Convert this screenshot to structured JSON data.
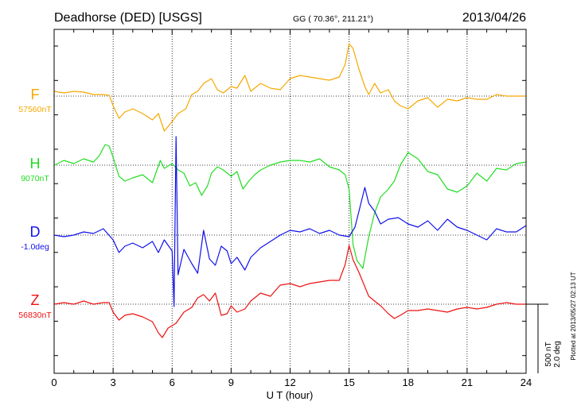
{
  "header": {
    "title": "Deadhorse (DED)  [USGS]",
    "coords": "GG ( 70.36°, 211.21°)",
    "date": "2013/04/26"
  },
  "side_note": "Plotted at 2013/05/27 02:13 UT",
  "scale_bar": {
    "label1": "500 nT",
    "label2": "2.0 deg"
  },
  "chart_data": {
    "type": "line",
    "xlabel": "U T (hour)",
    "xlim": [
      0,
      24
    ],
    "x_ticks": [
      "0",
      "3",
      "6",
      "9",
      "12",
      "15",
      "18",
      "21",
      "24"
    ],
    "grid": true,
    "series": [
      {
        "name": "F",
        "baseline": "57560nT",
        "color": "#f5a800",
        "x": [
          0,
          0.5,
          1,
          1.5,
          2,
          2.5,
          2.8,
          3,
          3.3,
          3.6,
          4,
          4.5,
          5,
          5.3,
          5.6,
          6,
          6.3,
          6.7,
          7,
          7.3,
          7.6,
          8,
          8.3,
          8.6,
          9,
          9.3,
          9.7,
          10,
          10.5,
          11,
          11.5,
          12,
          12.5,
          13,
          13.5,
          14,
          14.5,
          14.8,
          15,
          15.2,
          15.5,
          15.8,
          16,
          16.3,
          16.6,
          17,
          17.3,
          17.6,
          18,
          18.5,
          19,
          19.5,
          20,
          20.5,
          21,
          21.5,
          22,
          22.5,
          23,
          23.5,
          24
        ],
        "values": [
          6,
          4,
          6,
          5,
          2,
          2,
          1,
          -12,
          -28,
          -20,
          -16,
          -22,
          -30,
          -22,
          -44,
          -32,
          -22,
          -16,
          2,
          6,
          16,
          22,
          8,
          4,
          12,
          10,
          26,
          6,
          16,
          10,
          8,
          22,
          26,
          24,
          22,
          20,
          24,
          40,
          66,
          60,
          34,
          12,
          2,
          16,
          4,
          8,
          -6,
          -12,
          -16,
          -6,
          -2,
          -14,
          -4,
          -6,
          -2,
          -4,
          -4,
          2,
          0,
          0,
          0
        ]
      },
      {
        "name": "H",
        "baseline": "9070nT",
        "color": "#22dd22",
        "x": [
          0,
          0.5,
          1,
          1.5,
          2,
          2.3,
          2.6,
          2.8,
          3,
          3.3,
          3.6,
          4,
          4.5,
          5,
          5.2,
          5.4,
          5.6,
          6,
          6.3,
          6.6,
          6.9,
          7.2,
          7.5,
          7.8,
          8,
          8.3,
          8.6,
          9,
          9.3,
          9.6,
          9.9,
          10.2,
          10.5,
          11,
          11.5,
          12,
          12.5,
          13,
          13.5,
          14,
          14.5,
          14.8,
          15,
          15.2,
          15.4,
          15.7,
          16,
          16.3,
          16.6,
          17,
          17.3,
          17.6,
          18,
          18.5,
          19,
          19.5,
          20,
          20.5,
          21,
          21.5,
          22,
          22.5,
          23,
          23.5,
          24
        ],
        "values": [
          0,
          6,
          2,
          8,
          4,
          12,
          26,
          24,
          10,
          -14,
          -20,
          -16,
          -12,
          -22,
          -8,
          6,
          -4,
          2,
          -6,
          -10,
          -26,
          -22,
          -38,
          -26,
          -10,
          -2,
          -6,
          -14,
          -8,
          -30,
          -20,
          -12,
          -6,
          0,
          4,
          6,
          6,
          4,
          8,
          -2,
          -6,
          -12,
          -30,
          -100,
          -120,
          -130,
          -90,
          -60,
          -40,
          -30,
          -20,
          0,
          16,
          8,
          -8,
          -12,
          -30,
          -34,
          -26,
          -10,
          -20,
          -4,
          -6,
          2,
          4
        ]
      },
      {
        "name": "D",
        "baseline": "-1.0deg",
        "color": "#1010ee",
        "x": [
          0,
          0.5,
          1,
          1.5,
          2,
          2.5,
          3,
          3.3,
          3.6,
          4,
          4.5,
          5,
          5.3,
          5.6,
          6,
          6.1,
          6.2,
          6.3,
          6.6,
          7,
          7.3,
          7.6,
          7.9,
          8.2,
          8.5,
          8.8,
          9,
          9.3,
          9.7,
          10,
          10.5,
          11,
          11.5,
          12,
          12.5,
          13,
          13.5,
          14,
          14.5,
          15,
          15.3,
          15.5,
          15.8,
          16,
          16.3,
          16.6,
          17,
          17.5,
          18,
          18.5,
          19,
          19.5,
          20,
          20.5,
          21,
          21.5,
          22,
          22.5,
          23,
          23.5,
          24
        ],
        "values": [
          0,
          -2,
          0,
          4,
          2,
          8,
          -6,
          -22,
          -14,
          -10,
          -16,
          -8,
          -22,
          -6,
          -20,
          -90,
          124,
          -50,
          -18,
          -36,
          -48,
          6,
          -30,
          -38,
          -14,
          -20,
          -36,
          -28,
          -44,
          -28,
          -16,
          -8,
          0,
          6,
          4,
          8,
          2,
          6,
          0,
          -2,
          10,
          30,
          60,
          40,
          30,
          14,
          20,
          22,
          14,
          10,
          18,
          6,
          20,
          10,
          6,
          0,
          -6,
          8,
          4,
          4,
          12
        ]
      },
      {
        "name": "Z",
        "baseline": "56830nT",
        "color": "#ee1111",
        "x": [
          0,
          0.5,
          1,
          1.5,
          2,
          2.5,
          2.8,
          3,
          3.3,
          3.6,
          4,
          4.5,
          5,
          5.3,
          5.5,
          5.8,
          6.2,
          6.6,
          7,
          7.3,
          7.6,
          7.9,
          8.2,
          8.5,
          8.8,
          9,
          9.3,
          9.7,
          10,
          10.5,
          11,
          11.5,
          12,
          12.5,
          13,
          13.5,
          14,
          14.5,
          14.8,
          15,
          15.2,
          15.5,
          15.8,
          16,
          16.3,
          16.6,
          17,
          17.3,
          17.6,
          18,
          18.5,
          19,
          19.5,
          20,
          20.5,
          21,
          21.5,
          22,
          22.5,
          23,
          23.5,
          24
        ],
        "values": [
          0,
          2,
          0,
          4,
          0,
          2,
          2,
          -10,
          -20,
          -14,
          -12,
          -16,
          -22,
          -36,
          -42,
          -30,
          -24,
          -10,
          -4,
          8,
          12,
          4,
          14,
          -14,
          -12,
          -2,
          -10,
          -6,
          4,
          14,
          10,
          24,
          26,
          22,
          26,
          28,
          30,
          30,
          50,
          74,
          56,
          40,
          22,
          10,
          4,
          -2,
          -12,
          -18,
          -14,
          -8,
          -8,
          -6,
          -8,
          -10,
          -6,
          -4,
          -6,
          -4,
          0,
          2,
          0,
          0
        ]
      }
    ]
  }
}
